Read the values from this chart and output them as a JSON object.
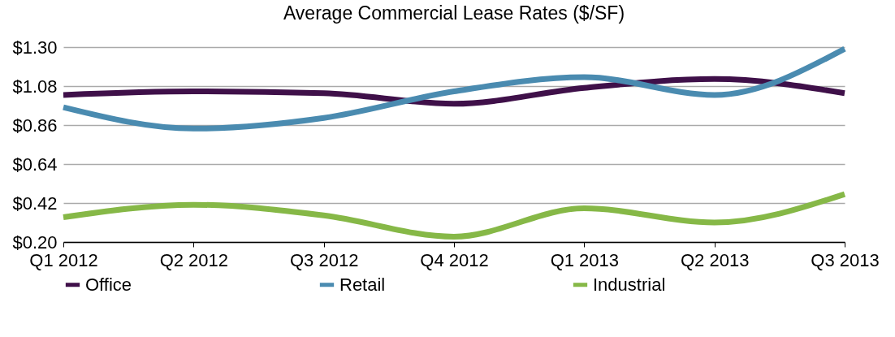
{
  "chart_data": {
    "type": "line",
    "title": "Average Commercial Lease Rates ($/SF)",
    "categories": [
      "Q1 2012",
      "Q2 2012",
      "Q3 2012",
      "Q4 2012",
      "Q1 2013",
      "Q2 2013",
      "Q3 2013"
    ],
    "series": [
      {
        "name": "Office",
        "color": "#3f1049",
        "values": [
          1.03,
          1.05,
          1.04,
          0.98,
          1.07,
          1.12,
          1.04
        ]
      },
      {
        "name": "Retail",
        "color": "#4a8bb0",
        "values": [
          0.96,
          0.84,
          0.9,
          1.05,
          1.13,
          1.03,
          1.29
        ]
      },
      {
        "name": "Industrial",
        "color": "#86b847",
        "values": [
          0.34,
          0.41,
          0.35,
          0.23,
          0.39,
          0.31,
          0.47
        ]
      }
    ],
    "ylim": [
      0.2,
      1.3
    ],
    "yticks": [
      {
        "value": 0.2,
        "label": "$0.20"
      },
      {
        "value": 0.42,
        "label": "$0.42"
      },
      {
        "value": 0.64,
        "label": "$0.64"
      },
      {
        "value": 0.86,
        "label": "$0.86"
      },
      {
        "value": 1.08,
        "label": "$1.08"
      },
      {
        "value": 1.3,
        "label": "$1.30"
      }
    ],
    "grid": "y",
    "legend": "bottom",
    "marker": "none",
    "line_style": "solid"
  }
}
